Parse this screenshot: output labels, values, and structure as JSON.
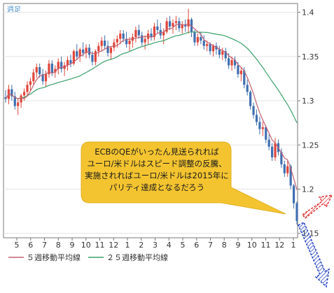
{
  "chart_data": {
    "type": "candlestick",
    "period_label": "週足",
    "y_ticks": [
      "1.4",
      "1.35",
      "1.3",
      "1.25",
      "1.2",
      "1.15"
    ],
    "ylim": [
      1.145,
      1.41
    ],
    "x_ticks": [
      "5",
      "6",
      "7",
      "8",
      "9",
      "10",
      "11",
      "12",
      "1",
      "2",
      "3",
      "4",
      "5",
      "6",
      "7",
      "8",
      "9",
      "10",
      "11",
      "12",
      "1"
    ],
    "legend": [
      {
        "name": "５週移動平均線",
        "color": "#c06070"
      },
      {
        "name": "２５週移動平均線",
        "color": "#3aa06a"
      }
    ],
    "colors": {
      "up": "#e0453a",
      "down": "#3f6fb0",
      "frame": "#777777",
      "callout": "#f4c430"
    },
    "candles": [
      [
        1.304,
        1.312,
        1.298,
        1.302
      ],
      [
        1.302,
        1.318,
        1.296,
        1.313
      ],
      [
        1.313,
        1.318,
        1.3,
        1.305
      ],
      [
        1.305,
        1.31,
        1.29,
        1.294
      ],
      [
        1.294,
        1.302,
        1.284,
        1.298
      ],
      [
        1.298,
        1.308,
        1.292,
        1.306
      ],
      [
        1.306,
        1.314,
        1.3,
        1.31
      ],
      [
        1.31,
        1.322,
        1.306,
        1.318
      ],
      [
        1.318,
        1.326,
        1.312,
        1.322
      ],
      [
        1.322,
        1.336,
        1.318,
        1.332
      ],
      [
        1.332,
        1.342,
        1.326,
        1.338
      ],
      [
        1.338,
        1.342,
        1.326,
        1.33
      ],
      [
        1.33,
        1.336,
        1.318,
        1.322
      ],
      [
        1.322,
        1.334,
        1.316,
        1.33
      ],
      [
        1.33,
        1.346,
        1.326,
        1.342
      ],
      [
        1.342,
        1.346,
        1.328,
        1.332
      ],
      [
        1.332,
        1.34,
        1.326,
        1.336
      ],
      [
        1.336,
        1.348,
        1.33,
        1.344
      ],
      [
        1.344,
        1.35,
        1.332,
        1.336
      ],
      [
        1.336,
        1.344,
        1.328,
        1.34
      ],
      [
        1.34,
        1.35,
        1.334,
        1.346
      ],
      [
        1.346,
        1.352,
        1.338,
        1.342
      ],
      [
        1.342,
        1.358,
        1.34,
        1.356
      ],
      [
        1.356,
        1.364,
        1.346,
        1.35
      ],
      [
        1.35,
        1.36,
        1.344,
        1.358
      ],
      [
        1.358,
        1.366,
        1.35,
        1.354
      ],
      [
        1.354,
        1.364,
        1.348,
        1.36
      ],
      [
        1.36,
        1.364,
        1.348,
        1.352
      ],
      [
        1.352,
        1.356,
        1.34,
        1.344
      ],
      [
        1.344,
        1.358,
        1.34,
        1.356
      ],
      [
        1.356,
        1.366,
        1.35,
        1.362
      ],
      [
        1.362,
        1.372,
        1.356,
        1.368
      ],
      [
        1.368,
        1.374,
        1.358,
        1.362
      ],
      [
        1.362,
        1.368,
        1.35,
        1.354
      ],
      [
        1.354,
        1.362,
        1.346,
        1.36
      ],
      [
        1.36,
        1.37,
        1.356,
        1.366
      ],
      [
        1.366,
        1.374,
        1.36,
        1.37
      ],
      [
        1.37,
        1.38,
        1.364,
        1.376
      ],
      [
        1.376,
        1.38,
        1.366,
        1.37
      ],
      [
        1.37,
        1.378,
        1.36,
        1.364
      ],
      [
        1.364,
        1.372,
        1.356,
        1.368
      ],
      [
        1.368,
        1.376,
        1.36,
        1.372
      ],
      [
        1.372,
        1.384,
        1.366,
        1.38
      ],
      [
        1.38,
        1.386,
        1.37,
        1.374
      ],
      [
        1.374,
        1.378,
        1.362,
        1.366
      ],
      [
        1.366,
        1.374,
        1.358,
        1.37
      ],
      [
        1.37,
        1.38,
        1.364,
        1.376
      ],
      [
        1.376,
        1.382,
        1.368,
        1.372
      ],
      [
        1.372,
        1.388,
        1.368,
        1.384
      ],
      [
        1.384,
        1.392,
        1.376,
        1.38
      ],
      [
        1.38,
        1.388,
        1.37,
        1.374
      ],
      [
        1.374,
        1.382,
        1.364,
        1.378
      ],
      [
        1.378,
        1.394,
        1.376,
        1.39
      ],
      [
        1.39,
        1.396,
        1.38,
        1.384
      ],
      [
        1.384,
        1.392,
        1.376,
        1.388
      ],
      [
        1.388,
        1.396,
        1.38,
        1.39
      ],
      [
        1.39,
        1.394,
        1.378,
        1.382
      ],
      [
        1.382,
        1.39,
        1.376,
        1.386
      ],
      [
        1.386,
        1.392,
        1.378,
        1.384
      ],
      [
        1.384,
        1.404,
        1.376,
        1.392
      ],
      [
        1.392,
        1.394,
        1.372,
        1.378
      ],
      [
        1.378,
        1.38,
        1.362,
        1.366
      ],
      [
        1.366,
        1.376,
        1.362,
        1.372
      ],
      [
        1.372,
        1.378,
        1.364,
        1.368
      ],
      [
        1.368,
        1.374,
        1.358,
        1.362
      ],
      [
        1.362,
        1.368,
        1.356,
        1.364
      ],
      [
        1.364,
        1.366,
        1.352,
        1.356
      ],
      [
        1.356,
        1.364,
        1.35,
        1.362
      ],
      [
        1.362,
        1.366,
        1.352,
        1.358
      ],
      [
        1.358,
        1.362,
        1.348,
        1.352
      ],
      [
        1.352,
        1.36,
        1.346,
        1.356
      ],
      [
        1.356,
        1.36,
        1.344,
        1.348
      ],
      [
        1.348,
        1.354,
        1.336,
        1.34
      ],
      [
        1.34,
        1.35,
        1.334,
        1.346
      ],
      [
        1.346,
        1.35,
        1.336,
        1.34
      ],
      [
        1.34,
        1.344,
        1.326,
        1.33
      ],
      [
        1.33,
        1.338,
        1.322,
        1.334
      ],
      [
        1.334,
        1.338,
        1.314,
        1.318
      ],
      [
        1.318,
        1.324,
        1.306,
        1.31
      ],
      [
        1.31,
        1.312,
        1.29,
        1.294
      ],
      [
        1.294,
        1.298,
        1.28,
        1.284
      ],
      [
        1.284,
        1.29,
        1.272,
        1.276
      ],
      [
        1.276,
        1.282,
        1.262,
        1.268
      ],
      [
        1.268,
        1.276,
        1.26,
        1.27
      ],
      [
        1.27,
        1.272,
        1.252,
        1.256
      ],
      [
        1.256,
        1.262,
        1.244,
        1.248
      ],
      [
        1.248,
        1.252,
        1.232,
        1.236
      ],
      [
        1.236,
        1.258,
        1.232,
        1.252
      ],
      [
        1.252,
        1.256,
        1.238,
        1.242
      ],
      [
        1.242,
        1.246,
        1.224,
        1.228
      ],
      [
        1.228,
        1.232,
        1.214,
        1.218
      ],
      [
        1.218,
        1.232,
        1.214,
        1.226
      ],
      [
        1.226,
        1.228,
        1.2,
        1.204
      ],
      [
        1.204,
        1.206,
        1.178,
        1.184
      ],
      [
        1.184,
        1.186,
        1.16,
        1.164
      ]
    ]
  },
  "callout": {
    "lines": [
      "ECBのQEがいったん見送られれば",
      "ユーロ/米ドルはスピード調整の反騰、",
      "実施されればユーロ/米ドルは2015年に",
      "パリティ達成となるだろう"
    ]
  }
}
